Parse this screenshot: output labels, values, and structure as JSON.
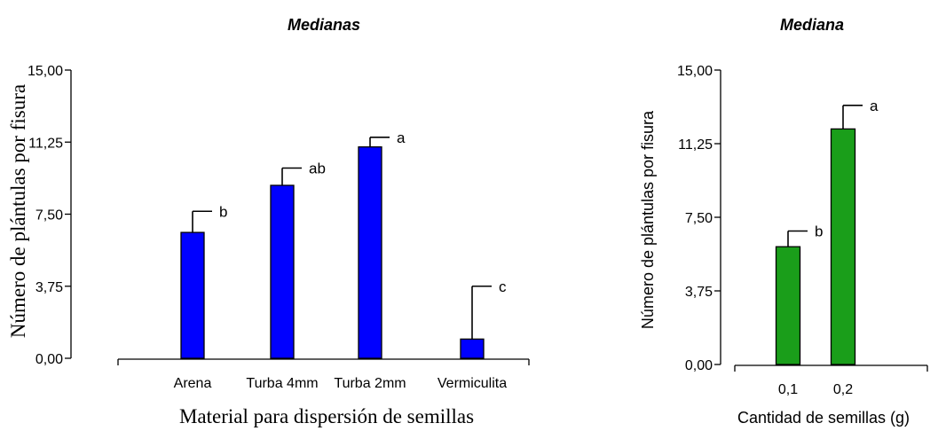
{
  "chart_data": [
    {
      "type": "bar",
      "title": "Medianas",
      "xlabel": "Material para dispersión de semillas",
      "ylabel": "Número de plántulas por fisura",
      "categories": [
        "Arena",
        "Turba 4mm",
        "Turba 2mm",
        "Vermiculita"
      ],
      "values": [
        6.55,
        9.0,
        11.0,
        1.0
      ],
      "error_upper": [
        7.65,
        9.9,
        11.5,
        3.75
      ],
      "significance": [
        "b",
        "ab",
        "a",
        "c"
      ],
      "yticks": [
        "0,00",
        "3,75",
        "7,50",
        "11,25",
        "15,00"
      ],
      "ylim": [
        0,
        15
      ],
      "bar_color": "#0000ff",
      "grid": false
    },
    {
      "type": "bar",
      "title": "Mediana",
      "xlabel": "Cantidad de semillas (g)",
      "ylabel": "Número de plántulas por fisura",
      "categories": [
        "0,1",
        "0,2"
      ],
      "values": [
        6.0,
        12.0
      ],
      "error_upper": [
        6.8,
        13.2
      ],
      "significance": [
        "b",
        "a"
      ],
      "yticks": [
        "0,00",
        "3,75",
        "7,50",
        "11,25",
        "15,00"
      ],
      "ylim": [
        0,
        15
      ],
      "bar_color": "#1a9e1a",
      "grid": false
    }
  ]
}
